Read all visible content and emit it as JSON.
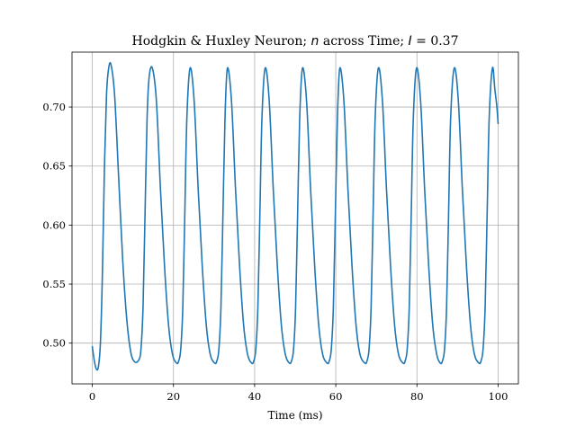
{
  "chart_data": {
    "type": "line",
    "title_parts": {
      "prefix": "Hodgkin & Huxley Neuron; ",
      "var": "n",
      "middle": " across Time; ",
      "param": "I",
      "eq": " = ",
      "value": "0.37"
    },
    "xlabel": "Time (ms)",
    "ylabel": "",
    "xlim": [
      -5,
      105
    ],
    "ylim": [
      0.4655,
      0.7465
    ],
    "xticks": [
      0,
      20,
      40,
      60,
      80,
      100
    ],
    "yticks": [
      0.5,
      0.55,
      0.6,
      0.65,
      0.7
    ],
    "grid": true,
    "line_color": "#1f77b4",
    "series": [
      {
        "x": [
          0,
          0.5,
          1.0,
          1.5,
          2.0,
          2.5,
          3.0,
          3.5,
          4.0,
          4.6,
          5.5,
          6.5,
          7.5,
          8.5,
          9.5,
          10.5,
          11.5,
          12.0,
          12.5,
          13.0,
          13.5,
          14.0,
          14.8,
          15.8,
          16.8,
          17.8,
          18.8,
          19.8,
          20.8,
          21.3,
          21.8,
          22.3,
          22.8,
          23.3,
          24.1,
          25.1,
          26.1,
          27.1,
          28.1,
          29.1,
          30.2,
          30.7,
          31.2,
          31.7,
          32.2,
          32.7,
          33.3,
          34.3,
          35.3,
          36.3,
          37.3,
          38.3,
          39.3,
          39.8,
          40.3,
          40.8,
          41.3,
          41.8,
          42.6,
          43.6,
          44.6,
          45.6,
          46.6,
          47.6,
          48.6,
          49.1,
          49.6,
          50.1,
          50.6,
          51.1,
          51.8,
          52.8,
          53.8,
          54.8,
          55.8,
          56.8,
          57.9,
          58.4,
          58.9,
          59.4,
          59.9,
          60.4,
          61.0,
          62.0,
          63.0,
          64.0,
          65.0,
          66.0,
          67.2,
          67.7,
          68.2,
          68.7,
          69.2,
          69.7,
          70.5,
          71.5,
          72.5,
          73.5,
          74.5,
          75.5,
          76.6,
          77.1,
          77.6,
          78.1,
          78.6,
          79.1,
          79.9,
          80.9,
          81.9,
          82.9,
          83.9,
          84.9,
          85.8,
          86.3,
          86.8,
          87.3,
          87.8,
          88.3,
          89.2,
          90.2,
          91.2,
          92.2,
          93.2,
          94.2,
          95.3,
          95.8,
          96.3,
          96.8,
          97.3,
          97.8,
          98.6,
          99.2,
          99.7,
          100.0
        ],
        "y": [
          0.497,
          0.485,
          0.478,
          0.48,
          0.5,
          0.56,
          0.65,
          0.71,
          0.732,
          0.736,
          0.71,
          0.64,
          0.57,
          0.52,
          0.492,
          0.484,
          0.486,
          0.495,
          0.53,
          0.61,
          0.69,
          0.725,
          0.733,
          0.705,
          0.63,
          0.565,
          0.515,
          0.49,
          0.483,
          0.485,
          0.495,
          0.53,
          0.61,
          0.69,
          0.733,
          0.705,
          0.63,
          0.565,
          0.515,
          0.49,
          0.483,
          0.485,
          0.495,
          0.53,
          0.61,
          0.69,
          0.733,
          0.705,
          0.63,
          0.565,
          0.515,
          0.49,
          0.483,
          0.485,
          0.495,
          0.53,
          0.61,
          0.69,
          0.733,
          0.705,
          0.63,
          0.565,
          0.515,
          0.49,
          0.483,
          0.485,
          0.495,
          0.53,
          0.61,
          0.69,
          0.733,
          0.705,
          0.63,
          0.565,
          0.515,
          0.49,
          0.483,
          0.485,
          0.495,
          0.53,
          0.61,
          0.69,
          0.733,
          0.705,
          0.63,
          0.565,
          0.515,
          0.49,
          0.483,
          0.485,
          0.495,
          0.53,
          0.61,
          0.69,
          0.733,
          0.705,
          0.63,
          0.565,
          0.515,
          0.49,
          0.483,
          0.485,
          0.495,
          0.53,
          0.61,
          0.69,
          0.733,
          0.705,
          0.63,
          0.565,
          0.515,
          0.49,
          0.483,
          0.485,
          0.495,
          0.53,
          0.61,
          0.69,
          0.733,
          0.705,
          0.63,
          0.565,
          0.515,
          0.49,
          0.483,
          0.485,
          0.495,
          0.53,
          0.61,
          0.69,
          0.733,
          0.715,
          0.7,
          0.686
        ]
      }
    ]
  }
}
